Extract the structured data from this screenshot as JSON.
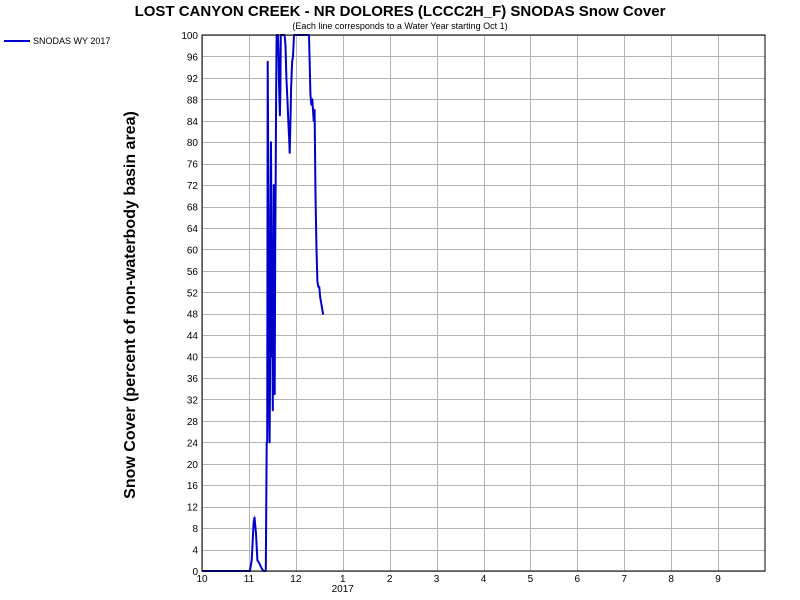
{
  "chart_data": {
    "type": "line",
    "title": "LOST CANYON CREEK - NR DOLORES (LCCC2H_F) SNODAS Snow Cover",
    "subtitle": "(Each line corresponds to a Water Year starting Oct 1)",
    "ylabel": "Snow Cover (percent of non-waterbody basin area)",
    "xlabel": "",
    "ylim": [
      0,
      100
    ],
    "xlim": [
      0,
      12
    ],
    "y_ticks": [
      0,
      4,
      8,
      12,
      16,
      20,
      24,
      28,
      32,
      36,
      40,
      44,
      48,
      52,
      56,
      60,
      64,
      68,
      72,
      76,
      80,
      84,
      88,
      92,
      96,
      100
    ],
    "x_ticks": [
      {
        "value": 0,
        "label": "10"
      },
      {
        "value": 1,
        "label": "11"
      },
      {
        "value": 2,
        "label": "12"
      },
      {
        "value": 3,
        "label": "1"
      },
      {
        "value": 4,
        "label": "2"
      },
      {
        "value": 5,
        "label": "3"
      },
      {
        "value": 6,
        "label": "4"
      },
      {
        "value": 7,
        "label": "5"
      },
      {
        "value": 8,
        "label": "6"
      },
      {
        "value": 9,
        "label": "7"
      },
      {
        "value": 10,
        "label": "8"
      },
      {
        "value": 11,
        "label": "9"
      }
    ],
    "x_year_label": {
      "value": 3,
      "label": "2017"
    },
    "grid": true,
    "legend": {
      "placement": "top-left"
    },
    "series": [
      {
        "name": "SNODAS WY 2017",
        "color": "#0000cc",
        "x": [
          0,
          1.02,
          1.06,
          1.1,
          1.12,
          1.15,
          1.18,
          1.22,
          1.27,
          1.31,
          1.33,
          1.36,
          1.38,
          1.39,
          1.4,
          1.41,
          1.42,
          1.43,
          1.44,
          1.45,
          1.46,
          1.47,
          1.48,
          1.49,
          1.5,
          1.51,
          1.52,
          1.53,
          1.54,
          1.55,
          1.56,
          1.57,
          1.58,
          1.59,
          1.6,
          1.61,
          1.62,
          1.63,
          1.64,
          1.65,
          1.66,
          1.67,
          1.68,
          1.69,
          1.7,
          1.72,
          1.74,
          1.76,
          1.78,
          1.8,
          1.82,
          1.84,
          1.85,
          1.86,
          1.87,
          1.88,
          1.89,
          1.9,
          1.92,
          1.94,
          1.96,
          1.98,
          2.0,
          2.02,
          2.04,
          2.06,
          2.08,
          2.1,
          2.12,
          2.14,
          2.15,
          2.16,
          2.18,
          2.2,
          2.22,
          2.24,
          2.26,
          2.28,
          2.3,
          2.31,
          2.32,
          2.33,
          2.35,
          2.38,
          2.4,
          2.42,
          2.44,
          2.46,
          2.48,
          2.5,
          2.52,
          2.54,
          2.56,
          2.58,
          2.6
        ],
        "y": [
          0,
          0,
          2,
          9,
          10,
          7,
          2,
          1.5,
          0.5,
          0,
          0,
          0,
          24,
          24,
          95,
          78,
          50,
          30,
          24,
          35,
          67,
          80,
          66,
          40,
          43,
          30,
          55,
          72,
          36,
          33,
          60,
          74,
          88,
          100,
          100,
          100,
          100,
          97,
          92,
          88,
          85,
          90,
          100,
          100,
          100,
          100,
          100,
          100,
          98,
          92,
          88,
          84,
          82,
          80,
          78,
          82,
          86,
          90,
          95,
          96,
          100,
          100,
          100,
          100,
          100,
          100,
          100,
          100,
          100,
          100,
          100,
          100,
          100,
          100,
          100,
          100,
          100,
          100,
          93,
          89,
          88,
          87,
          88,
          84,
          86,
          70,
          60,
          54,
          53,
          53,
          51,
          50,
          49,
          48,
          48
        ]
      }
    ]
  }
}
